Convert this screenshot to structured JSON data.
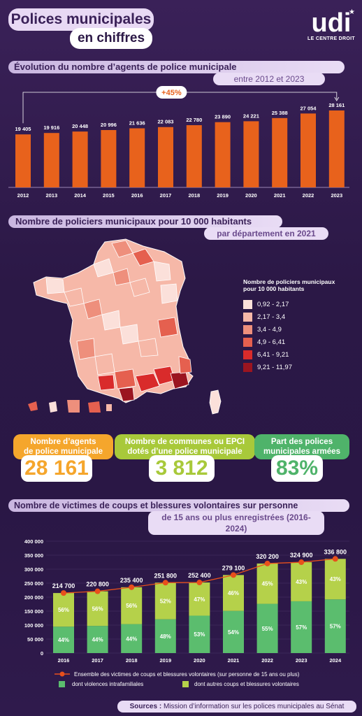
{
  "header": {
    "title_line1": "Polices municipales",
    "title_line2": "en chiffres",
    "logo_text": "udi",
    "logo_tagline": "LE CENTRE DROIT"
  },
  "section1": {
    "title": "Évolution du nombre d’agents de police municipale",
    "subtitle": "entre 2012 et 2023",
    "growth_label": "+45%"
  },
  "section2": {
    "title": "Nombre de policiers municipaux pour 10 000 habitants",
    "subtitle": "par département en 2021",
    "legend_title_1": "Nombre de policiers municipaux",
    "legend_title_2": "pour 10 000 habitants",
    "legend": [
      {
        "label": "0,92 - 2,17",
        "color": "#fbe0da"
      },
      {
        "label": "2,17 - 3,4",
        "color": "#f6b8a8"
      },
      {
        "label": "3,4 - 4,9",
        "color": "#ee8f7c"
      },
      {
        "label": "4,9 - 6,41",
        "color": "#e5604f"
      },
      {
        "label": "6,41 - 9,21",
        "color": "#d92b2b"
      },
      {
        "label": "9,21 - 11,97",
        "color": "#9b1520"
      }
    ]
  },
  "kpis": [
    {
      "label_1": "Nombre d’agents",
      "label_2": "de police municipale",
      "value": "28 161",
      "color": "#f5a62c"
    },
    {
      "label_1": "Nombre de communes ou EPCI",
      "label_2": "dotés d’une police municipale",
      "value": "3 812",
      "color": "#a8c93a"
    },
    {
      "label_1": "Part des polices",
      "label_2": "municipales armées",
      "value": "83%",
      "color": "#4fb36a"
    }
  ],
  "section3": {
    "title": "Nombre de victimes de coups et blessures volontaires sur personne",
    "subtitle": "de 15 ans ou plus enregistrées (2016-2024)",
    "legend_line": "Ensemble des victimes de coups et blessures volontaires (sur personne de 15 ans ou plus)",
    "legend_green": "dont violences intrafamiliales",
    "legend_lime": "dont autres coups et blessures volontaires"
  },
  "footer": {
    "sources_bold": "Sources :",
    "sources_text": "Mission d’information sur les polices municipales au Sénat"
  },
  "chart_data": [
    {
      "type": "bar",
      "title": "Évolution du nombre d’agents de police municipale",
      "categories": [
        "2012",
        "2013",
        "2014",
        "2015",
        "2016",
        "2017",
        "2018",
        "2019",
        "2020",
        "2021",
        "2022",
        "2023"
      ],
      "values": [
        19405,
        19916,
        20448,
        20996,
        21636,
        22083,
        22780,
        23890,
        24221,
        25388,
        27054,
        28161
      ],
      "labels": [
        "19 405",
        "19 916",
        "20 448",
        "20 996",
        "21 636",
        "22 083",
        "22 780",
        "23 890",
        "24 221",
        "25 388",
        "27 054",
        "28 161"
      ],
      "ylim": [
        0,
        30000
      ],
      "color": "#e8621c"
    },
    {
      "type": "bar",
      "title": "Nombre de victimes de coups et blessures volontaires sur personne de 15 ans ou plus enregistrées (2016-2024)",
      "categories": [
        "2016",
        "2017",
        "2018",
        "2019",
        "2020",
        "2021",
        "2022",
        "2023",
        "2024"
      ],
      "yticks": [
        "0",
        "50 000",
        "100 000",
        "150 000",
        "200 000",
        "250 000",
        "300 000",
        "350 000",
        "400 000"
      ],
      "ylim": [
        0,
        400000
      ],
      "series": [
        {
          "name": "dont violences intrafamiliales",
          "percent": [
            "44%",
            "44%",
            "44%",
            "48%",
            "53%",
            "54%",
            "55%",
            "57%",
            "57%"
          ],
          "color": "#5bbd6e"
        },
        {
          "name": "dont autres coups et blessures volontaires",
          "percent": [
            "56%",
            "56%",
            "56%",
            "52%",
            "47%",
            "46%",
            "45%",
            "43%",
            "43%"
          ],
          "color": "#b5d14a"
        },
        {
          "name": "Ensemble des victimes de coups et blessures volontaires (sur personne de 15 ans ou plus)",
          "values": [
            214700,
            220800,
            235400,
            251800,
            252400,
            279100,
            320200,
            324900,
            336800
          ],
          "labels": [
            "214 700",
            "220 800",
            "235 400",
            "251 800",
            "252 400",
            "279 100",
            "320 200",
            "324 900",
            "336 800"
          ],
          "color": "#e8501c"
        }
      ],
      "shares": [
        0.44,
        0.44,
        0.44,
        0.48,
        0.53,
        0.54,
        0.55,
        0.57,
        0.57
      ]
    }
  ]
}
